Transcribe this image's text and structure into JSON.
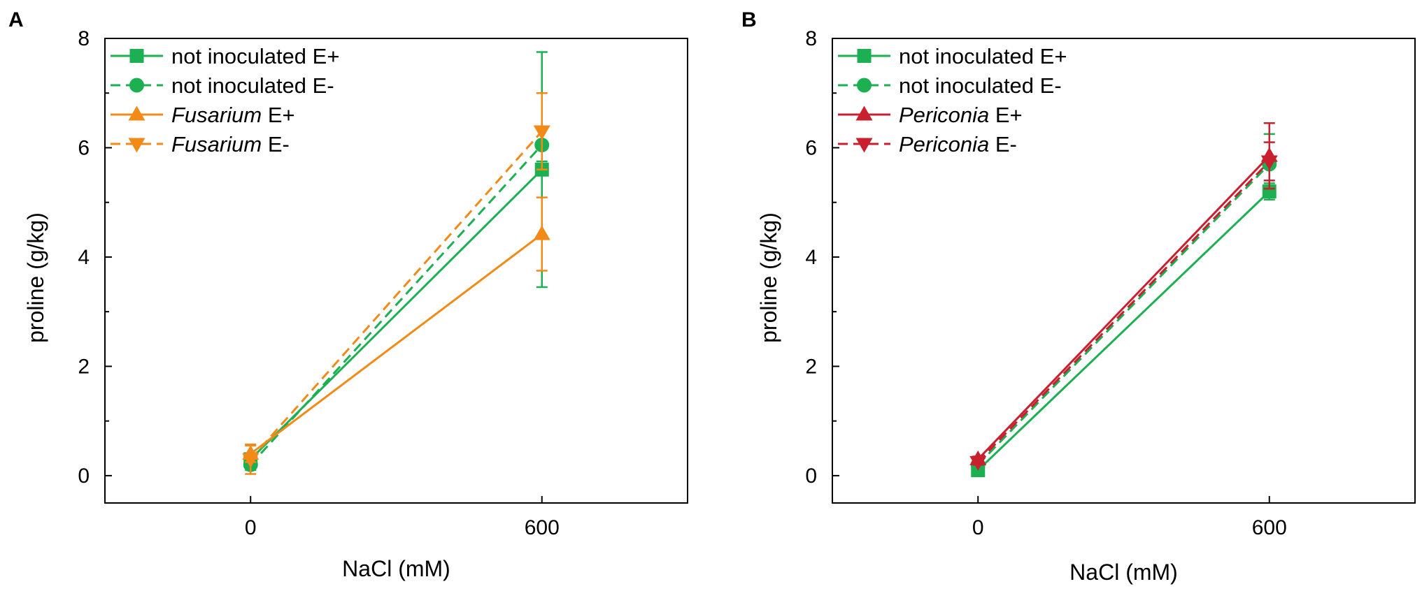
{
  "chart_data": [
    {
      "panel": "A",
      "type": "line",
      "xlabel": "NaCl (mM)",
      "ylabel": "proline (g/kg)",
      "x": [
        0,
        600
      ],
      "xticks": [
        "0",
        "600"
      ],
      "xlim": [
        -300,
        900
      ],
      "ylim": [
        -0.5,
        8
      ],
      "yticks": [
        "0",
        "2",
        "4",
        "6",
        "8"
      ],
      "legend_position": "top-left",
      "series": [
        {
          "name": "not inoculated E+",
          "label_italic": "",
          "label_rest": "not inoculated E+",
          "color": "#1db052",
          "dash": "solid",
          "marker": "square",
          "values": [
            0.3,
            5.6
          ],
          "err": [
            0.1,
            2.15
          ]
        },
        {
          "name": "not inoculated E-",
          "label_italic": "",
          "label_rest": "not inoculated E-",
          "color": "#1db052",
          "dash": "dashed",
          "marker": "circle",
          "values": [
            0.2,
            6.05
          ],
          "err": [
            0.1,
            0.3
          ]
        },
        {
          "name": "Fusarium E+",
          "label_italic": "Fusarium",
          "label_rest": " E+",
          "color": "#f28a18",
          "dash": "solid",
          "marker": "triangle-up",
          "values": [
            0.4,
            4.42
          ],
          "err": [
            0.15,
            0.67
          ]
        },
        {
          "name": "Fusarium E-",
          "label_italic": "Fusarium",
          "label_rest": " E-",
          "color": "#f28a18",
          "dash": "dashed",
          "marker": "triangle-down",
          "values": [
            0.3,
            6.3
          ],
          "err": [
            0.27,
            0.7
          ]
        }
      ]
    },
    {
      "panel": "B",
      "type": "line",
      "xlabel": "NaCl (mM)",
      "ylabel": "proline (g/kg)",
      "x": [
        0,
        600
      ],
      "xticks": [
        "0",
        "600"
      ],
      "xlim": [
        -300,
        900
      ],
      "ylim": [
        -0.5,
        8
      ],
      "yticks": [
        "0",
        "2",
        "4",
        "6",
        "8"
      ],
      "legend_position": "top-left",
      "series": [
        {
          "name": "not inoculated E+",
          "label_italic": "",
          "label_rest": "not inoculated E+",
          "color": "#1db052",
          "dash": "solid",
          "marker": "square",
          "values": [
            0.1,
            5.2
          ],
          "err": [
            0.05,
            0.15
          ]
        },
        {
          "name": "not inoculated E-",
          "label_italic": "",
          "label_rest": "not inoculated E-",
          "color": "#1db052",
          "dash": "dashed",
          "marker": "circle",
          "values": [
            0.2,
            5.7
          ],
          "err": [
            0.05,
            0.55
          ]
        },
        {
          "name": "Periconia E+",
          "label_italic": "Periconia",
          "label_rest": " E+",
          "color": "#c8202f",
          "dash": "solid",
          "marker": "triangle-up",
          "values": [
            0.3,
            5.85
          ],
          "err": [
            0.05,
            0.6
          ]
        },
        {
          "name": "Periconia E-",
          "label_italic": "Periconia",
          "label_rest": " E-",
          "color": "#c8202f",
          "dash": "dashed",
          "marker": "triangle-down",
          "values": [
            0.25,
            5.75
          ],
          "err": [
            0.05,
            0.35
          ]
        }
      ]
    }
  ]
}
